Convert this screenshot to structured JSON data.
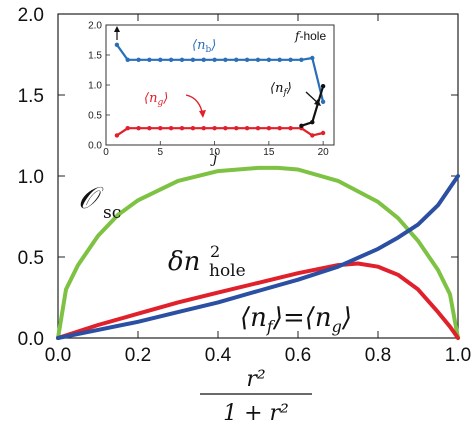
{
  "chart_data": [
    {
      "type": "line",
      "xlabel": "r² / (1 + r²)",
      "xlabel_num": "r²",
      "xlabel_den": "1 + r²",
      "xlim": [
        0,
        1
      ],
      "ylim": [
        0,
        2
      ],
      "xticks": [
        "0.0",
        "0.2",
        "0.4",
        "0.6",
        "0.8",
        "1.0"
      ],
      "yticks": [
        "0.0",
        "0.5",
        "1.0",
        "1.5",
        "2.0"
      ],
      "series": [
        {
          "name": "𝒪 sc",
          "color": "#7dc242",
          "x": [
            0,
            0.02,
            0.05,
            0.1,
            0.15,
            0.2,
            0.3,
            0.4,
            0.5,
            0.55,
            0.6,
            0.7,
            0.8,
            0.85,
            0.9,
            0.95,
            0.98,
            1.0
          ],
          "values": [
            0,
            0.3,
            0.45,
            0.63,
            0.76,
            0.85,
            0.97,
            1.03,
            1.05,
            1.05,
            1.04,
            0.97,
            0.84,
            0.74,
            0.6,
            0.42,
            0.27,
            0
          ]
        },
        {
          "name": "δn² hole",
          "color": "#e0202a",
          "x": [
            0,
            0.05,
            0.1,
            0.2,
            0.3,
            0.4,
            0.5,
            0.6,
            0.7,
            0.75,
            0.8,
            0.85,
            0.9,
            0.95,
            0.98,
            1.0
          ],
          "values": [
            0,
            0.04,
            0.08,
            0.15,
            0.22,
            0.28,
            0.34,
            0.4,
            0.45,
            0.46,
            0.44,
            0.39,
            0.3,
            0.16,
            0.07,
            0
          ]
        },
        {
          "name": "⟨n_f⟩=⟨n_g⟩",
          "color": "#2a4fa3",
          "x": [
            0,
            0.1,
            0.2,
            0.3,
            0.4,
            0.5,
            0.6,
            0.7,
            0.8,
            0.85,
            0.9,
            0.95,
            1.0
          ],
          "values": [
            0,
            0.05,
            0.1,
            0.16,
            0.22,
            0.29,
            0.36,
            0.44,
            0.55,
            0.62,
            0.7,
            0.82,
            1.0
          ]
        }
      ],
      "annotations": [
        {
          "text_main": "𝒪",
          "text_sub": "sc"
        },
        {
          "text_main": "δn",
          "text_sup": "2",
          "text_sub": "hole"
        },
        {
          "text": "⟨nₑ⟩=⟨n₉⟩",
          "left": "⟨n",
          "left_sub": "f",
          "mid": "⟩=⟨n",
          "right_sub": "g",
          "right": "⟩"
        }
      ]
    },
    {
      "type": "line",
      "xlabel": "j",
      "xlim": [
        0,
        21
      ],
      "ylim": [
        0,
        2
      ],
      "xticks": [
        "0",
        "5",
        "10",
        "15",
        "20"
      ],
      "yticks": [
        "0.0",
        "0.5",
        "1.0",
        "1.5",
        "2.0"
      ],
      "series": [
        {
          "name": "⟨n_b⟩",
          "color": "#2a6fb8",
          "x": [
            1,
            2,
            3,
            4,
            5,
            6,
            7,
            8,
            9,
            10,
            11,
            12,
            13,
            14,
            15,
            16,
            17,
            18,
            19,
            20
          ],
          "values": [
            1.67,
            1.42,
            1.42,
            1.42,
            1.42,
            1.42,
            1.42,
            1.42,
            1.42,
            1.42,
            1.42,
            1.42,
            1.42,
            1.42,
            1.42,
            1.42,
            1.42,
            1.42,
            1.45,
            0.72
          ]
        },
        {
          "name": "⟨n_g⟩",
          "color": "#e0202a",
          "x": [
            1,
            2,
            3,
            4,
            5,
            6,
            7,
            8,
            9,
            10,
            11,
            12,
            13,
            14,
            15,
            16,
            17,
            18,
            19,
            20
          ],
          "values": [
            0.16,
            0.28,
            0.28,
            0.28,
            0.28,
            0.28,
            0.28,
            0.28,
            0.28,
            0.28,
            0.28,
            0.28,
            0.28,
            0.28,
            0.28,
            0.28,
            0.28,
            0.28,
            0.16,
            0.2
          ]
        },
        {
          "name": "⟨n_f⟩",
          "color": "#111111",
          "x": [
            18,
            19,
            20
          ],
          "values": [
            0.32,
            0.38,
            0.98
          ]
        }
      ],
      "annotations": {
        "nb": {
          "left": "⟨n",
          "sub": "b",
          "right": "⟩",
          "color": "#2a6fb8"
        },
        "ng": {
          "left": "⟨n",
          "sub": "g",
          "right": "⟩",
          "color": "#e0202a"
        },
        "nf": {
          "left": "⟨n",
          "sub": "f",
          "right": "⟩",
          "color": "#111111"
        },
        "fhole": {
          "italic": "f",
          "rest": "-hole"
        }
      }
    }
  ]
}
